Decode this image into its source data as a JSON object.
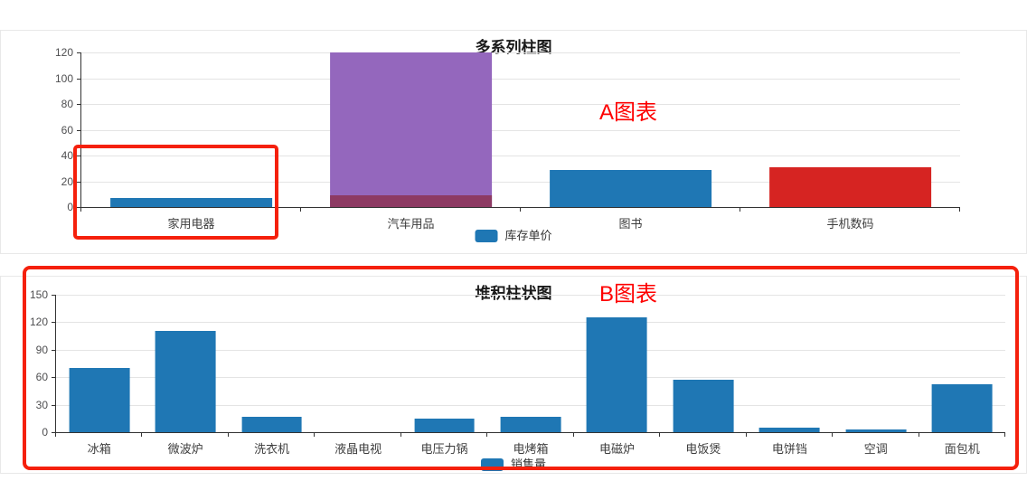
{
  "page": {
    "background": "#ffffff"
  },
  "annotations": {
    "a_label": "A图表",
    "b_label": "B图表",
    "text_color": "#fe0000",
    "rect_color": "#f5200c"
  },
  "chart_data": [
    {
      "type": "bar",
      "title": "多系列柱图",
      "legend_label": "库存单价",
      "legend_color": "#1f77b4",
      "legend_position": "bottom",
      "grid": true,
      "ylim": [
        0,
        120
      ],
      "ytick_step": 20,
      "yticks": [
        0,
        20,
        40,
        60,
        80,
        100,
        120
      ],
      "categories": [
        "家用电器",
        "汽车用品",
        "图书",
        "手机数码"
      ],
      "bars": [
        {
          "category": "家用电器",
          "value": 7,
          "color": "#1f77b4"
        },
        {
          "category": "汽车用品",
          "value": 120,
          "clipped": true,
          "color": "#9467bd",
          "overlap": {
            "value": 9,
            "color": "#8d3a63"
          }
        },
        {
          "category": "图书",
          "value": 29,
          "color": "#1f77b4"
        },
        {
          "category": "手机数码",
          "value": 31,
          "color": "#d62422"
        }
      ]
    },
    {
      "type": "bar",
      "title": "堆积柱状图",
      "legend_label": "销售量",
      "legend_color": "#1f77b4",
      "legend_position": "bottom",
      "grid": true,
      "ylim": [
        0,
        150
      ],
      "ytick_step": 30,
      "yticks": [
        0,
        30,
        60,
        90,
        120,
        150
      ],
      "categories": [
        "冰箱",
        "微波炉",
        "洗衣机",
        "液晶电视",
        "电压力锅",
        "电烤箱",
        "电磁炉",
        "电饭煲",
        "电饼铛",
        "空调",
        "面包机"
      ],
      "bars": [
        {
          "category": "冰箱",
          "value": 70,
          "color": "#1f77b4"
        },
        {
          "category": "微波炉",
          "value": 111,
          "color": "#1f77b4"
        },
        {
          "category": "洗衣机",
          "value": 17,
          "color": "#1f77b4"
        },
        {
          "category": "液晶电视",
          "value": 0,
          "color": "#1f77b4"
        },
        {
          "category": "电压力锅",
          "value": 15,
          "color": "#1f77b4"
        },
        {
          "category": "电烤箱",
          "value": 17,
          "color": "#1f77b4"
        },
        {
          "category": "电磁炉",
          "value": 125,
          "color": "#1f77b4"
        },
        {
          "category": "电饭煲",
          "value": 57,
          "color": "#1f77b4"
        },
        {
          "category": "电饼铛",
          "value": 5,
          "color": "#1f77b4"
        },
        {
          "category": "空调",
          "value": 3,
          "color": "#1f77b4"
        },
        {
          "category": "面包机",
          "value": 52,
          "color": "#1f77b4"
        }
      ]
    }
  ]
}
